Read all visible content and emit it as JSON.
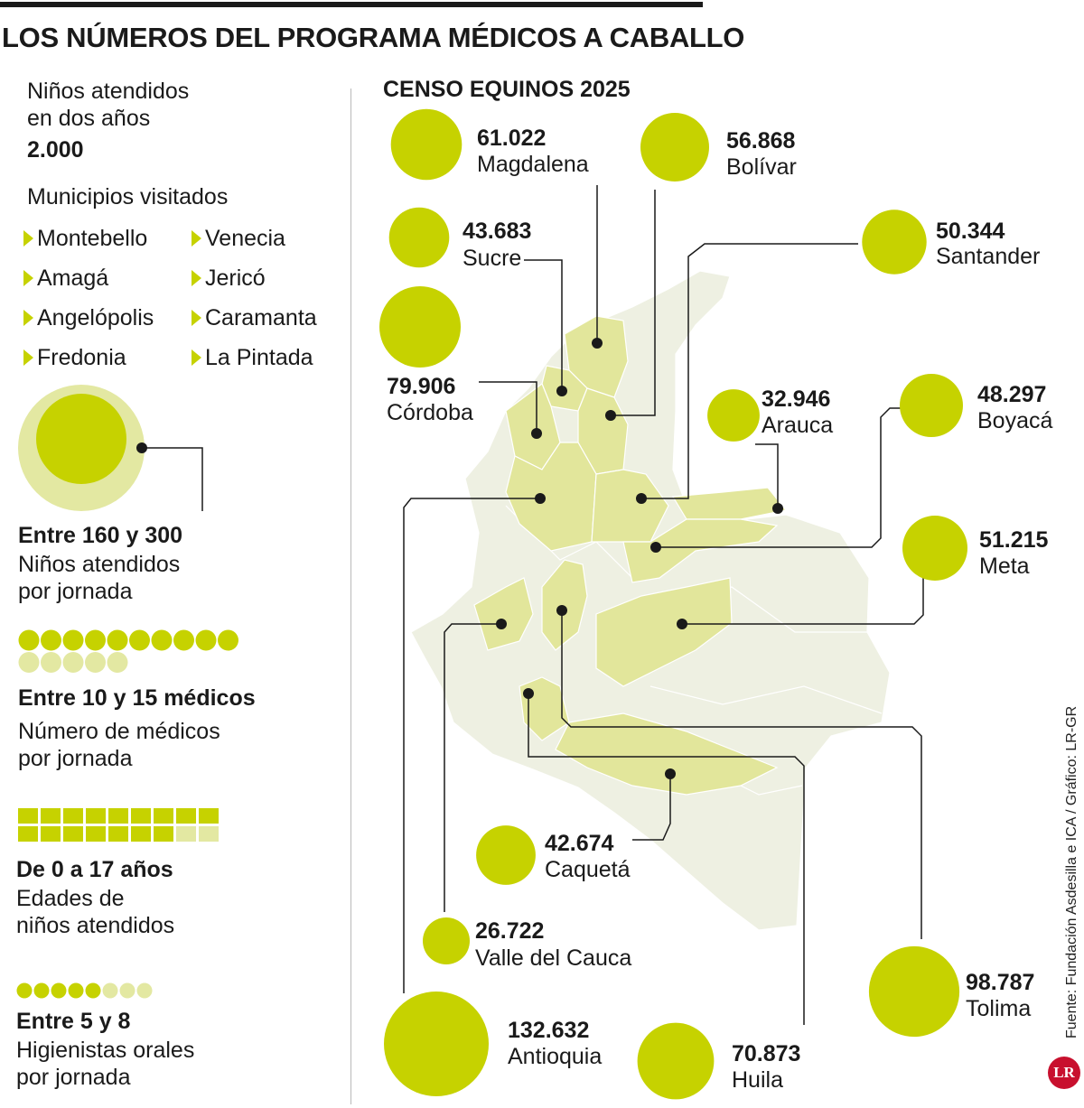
{
  "title": "LOS NÚMEROS DEL PROGRAMA MÉDICOS A CABALLO",
  "ninos": {
    "label_1": "Niños atendidos",
    "label_2": "en dos años",
    "value": "2.000"
  },
  "municipios": {
    "heading": "Municipios visitados",
    "items": [
      "Montebello",
      "Venecia",
      "Amagá",
      "Jericó",
      "Angelópolis",
      "Caramanta",
      "Fredonia",
      "La Pintada"
    ]
  },
  "stats": {
    "ninos_jornada": {
      "value": "Entre 160 y 300",
      "line1": "Niños atendidos",
      "line2": "por jornada"
    },
    "medicos": {
      "value": "Entre 10 y 15 médicos",
      "line1": "Número de médicos",
      "line2": "por jornada",
      "filled": 10,
      "light": 5
    },
    "edades": {
      "value": "De 0 a 17 años",
      "line1": "Edades de",
      "line2": "niños atendidos",
      "filled": 16,
      "light": 2
    },
    "higienistas": {
      "value": "Entre 5 y 8",
      "line1": "Higienistas orales",
      "line2": "por jornada",
      "filled": 5,
      "light": 3
    }
  },
  "chart_data": {
    "type": "bubble",
    "title": "CENSO EQUINOS 2025",
    "categories": [
      "Magdalena",
      "Bolívar",
      "Sucre",
      "Santander",
      "Córdoba",
      "Arauca",
      "Boyacá",
      "Meta",
      "Caquetá",
      "Valle del Cauca",
      "Antioquia",
      "Huila",
      "Tolima"
    ],
    "values": [
      61022,
      56868,
      43683,
      50344,
      79906,
      32946,
      48297,
      51215,
      42674,
      26722,
      132632,
      70873,
      98787
    ],
    "labels": [
      "61.022",
      "56.868",
      "43.683",
      "50.344",
      "79.906",
      "32.946",
      "48.297",
      "51.215",
      "42.674",
      "26.722",
      "132.632",
      "70.873",
      "98.787"
    ]
  },
  "colors": {
    "accent": "#c6d200",
    "accent_light": "#e3e8a2",
    "map_base": "#eef0e2",
    "map_highlight": "#e2e69b"
  },
  "source": "Fuente: Fundación Asdesilla e ICA / Gráfico: LR-GR",
  "logo": "LR"
}
